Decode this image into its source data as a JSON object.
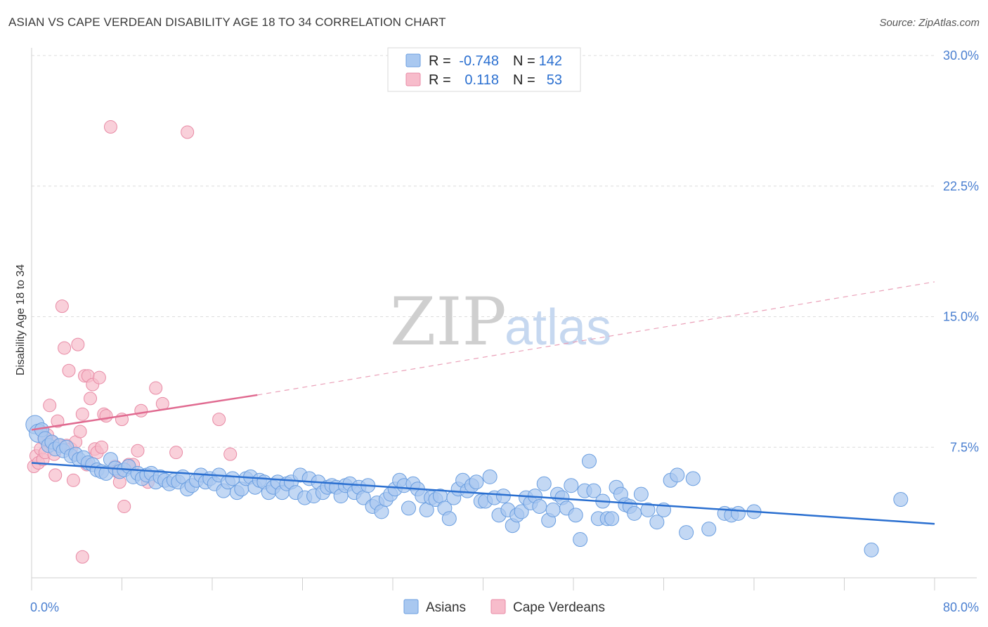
{
  "header": {
    "title": "ASIAN VS CAPE VERDEAN DISABILITY AGE 18 TO 34 CORRELATION CHART",
    "source": "Source: ZipAtlas.com"
  },
  "watermark": {
    "part1": "ZIP",
    "part2": "atlas"
  },
  "legend": {
    "rows": [
      {
        "r_label": "R =",
        "r_value": "-0.748",
        "n_label": "N =",
        "n_value": "142",
        "color": "#a9c8f0",
        "stroke": "#6a9ee0"
      },
      {
        "r_label": "R =",
        "r_value": "0.118",
        "n_label": "N =",
        "n_value": "53",
        "color": "#f7bccb",
        "stroke": "#e88aa5"
      }
    ]
  },
  "bottom_legend": {
    "items": [
      {
        "label": "Asians",
        "color": "#a9c8f0",
        "stroke": "#6a9ee0"
      },
      {
        "label": "Cape Verdeans",
        "color": "#f7bccb",
        "stroke": "#e88aa5"
      }
    ]
  },
  "chart_data": {
    "type": "scatter",
    "title": "ASIAN VS CAPE VERDEAN DISABILITY AGE 18 TO 34 CORRELATION CHART",
    "xlabel": "",
    "ylabel": "Disability Age 18 to 34",
    "xlim": [
      0,
      80
    ],
    "ylim": [
      0,
      30
    ],
    "x_tick_labels": [
      "0.0%",
      "80.0%"
    ],
    "y_ticks": [
      7.5,
      15.0,
      22.5,
      30.0
    ],
    "y_tick_labels": [
      "7.5%",
      "15.0%",
      "22.5%",
      "30.0%"
    ],
    "grid": "horizontal dashed",
    "legend_position": "top-center",
    "series": [
      {
        "name": "Asians",
        "color": "#a9c8f0",
        "stroke": "#6a9ee0",
        "trend": {
          "x": [
            0,
            80
          ],
          "y": [
            6.6,
            3.1
          ],
          "color": "#2a6fd0"
        },
        "points": [
          [
            0.3,
            8.8
          ],
          [
            0.6,
            8.3
          ],
          [
            0.9,
            8.5
          ],
          [
            1.2,
            8.0
          ],
          [
            1.5,
            7.6
          ],
          [
            1.8,
            7.8
          ],
          [
            2.1,
            7.4
          ],
          [
            2.5,
            7.6
          ],
          [
            2.8,
            7.3
          ],
          [
            3.1,
            7.5
          ],
          [
            3.5,
            7.0
          ],
          [
            3.9,
            7.1
          ],
          [
            4.2,
            6.8
          ],
          [
            4.6,
            6.9
          ],
          [
            5.0,
            6.6
          ],
          [
            5.4,
            6.5
          ],
          [
            5.8,
            6.2
          ],
          [
            6.2,
            6.1
          ],
          [
            6.6,
            6.0
          ],
          [
            7.0,
            6.8
          ],
          [
            7.4,
            6.3
          ],
          [
            7.8,
            6.1
          ],
          [
            8.2,
            6.2
          ],
          [
            8.6,
            6.4
          ],
          [
            9.0,
            5.8
          ],
          [
            9.4,
            6.0
          ],
          [
            9.8,
            5.7
          ],
          [
            10.2,
            5.9
          ],
          [
            10.6,
            6.0
          ],
          [
            11.0,
            5.5
          ],
          [
            11.4,
            5.8
          ],
          [
            11.8,
            5.6
          ],
          [
            12.2,
            5.4
          ],
          [
            12.6,
            5.6
          ],
          [
            13.0,
            5.5
          ],
          [
            13.4,
            5.8
          ],
          [
            13.8,
            5.1
          ],
          [
            14.2,
            5.3
          ],
          [
            14.6,
            5.6
          ],
          [
            15.0,
            5.9
          ],
          [
            15.4,
            5.5
          ],
          [
            15.8,
            5.7
          ],
          [
            16.2,
            5.4
          ],
          [
            16.6,
            5.9
          ],
          [
            17.0,
            5.0
          ],
          [
            17.4,
            5.5
          ],
          [
            17.8,
            5.7
          ],
          [
            18.2,
            4.9
          ],
          [
            18.6,
            5.1
          ],
          [
            19.0,
            5.7
          ],
          [
            19.4,
            5.8
          ],
          [
            19.8,
            5.2
          ],
          [
            20.2,
            5.6
          ],
          [
            20.6,
            5.5
          ],
          [
            21.0,
            4.9
          ],
          [
            21.4,
            5.2
          ],
          [
            21.8,
            5.5
          ],
          [
            22.2,
            4.9
          ],
          [
            22.6,
            5.4
          ],
          [
            23.0,
            5.5
          ],
          [
            23.4,
            4.9
          ],
          [
            23.8,
            5.9
          ],
          [
            24.2,
            4.6
          ],
          [
            24.6,
            5.7
          ],
          [
            25.0,
            4.7
          ],
          [
            25.4,
            5.5
          ],
          [
            25.8,
            4.9
          ],
          [
            26.2,
            5.2
          ],
          [
            26.6,
            5.3
          ],
          [
            27.0,
            5.2
          ],
          [
            27.4,
            4.7
          ],
          [
            27.8,
            5.3
          ],
          [
            28.2,
            5.4
          ],
          [
            28.6,
            4.9
          ],
          [
            29.0,
            5.2
          ],
          [
            29.4,
            4.6
          ],
          [
            29.8,
            5.3
          ],
          [
            30.2,
            4.1
          ],
          [
            30.6,
            4.3
          ],
          [
            31.0,
            3.8
          ],
          [
            31.4,
            4.5
          ],
          [
            31.8,
            4.8
          ],
          [
            32.2,
            5.1
          ],
          [
            32.6,
            5.6
          ],
          [
            33.0,
            5.3
          ],
          [
            33.4,
            4.0
          ],
          [
            33.8,
            5.4
          ],
          [
            34.2,
            5.1
          ],
          [
            34.6,
            4.7
          ],
          [
            35.0,
            3.9
          ],
          [
            35.4,
            4.6
          ],
          [
            35.8,
            4.5
          ],
          [
            36.2,
            4.7
          ],
          [
            36.6,
            4.0
          ],
          [
            37.0,
            3.4
          ],
          [
            37.4,
            4.6
          ],
          [
            37.8,
            5.1
          ],
          [
            38.2,
            5.6
          ],
          [
            38.6,
            5.0
          ],
          [
            39.0,
            5.3
          ],
          [
            39.4,
            5.5
          ],
          [
            39.8,
            4.4
          ],
          [
            40.2,
            4.4
          ],
          [
            40.6,
            5.8
          ],
          [
            41.0,
            4.6
          ],
          [
            41.4,
            3.6
          ],
          [
            41.8,
            4.7
          ],
          [
            42.2,
            3.9
          ],
          [
            42.6,
            3.0
          ],
          [
            43.0,
            3.6
          ],
          [
            43.4,
            3.8
          ],
          [
            43.8,
            4.6
          ],
          [
            44.2,
            4.3
          ],
          [
            44.6,
            4.7
          ],
          [
            45.0,
            4.1
          ],
          [
            45.4,
            5.4
          ],
          [
            45.8,
            3.3
          ],
          [
            46.2,
            3.9
          ],
          [
            46.6,
            4.8
          ],
          [
            47.0,
            4.6
          ],
          [
            47.4,
            4.0
          ],
          [
            47.8,
            5.3
          ],
          [
            48.2,
            3.6
          ],
          [
            48.6,
            2.2
          ],
          [
            49.0,
            5.0
          ],
          [
            49.4,
            6.7
          ],
          [
            49.8,
            5.0
          ],
          [
            50.2,
            3.4
          ],
          [
            50.6,
            4.4
          ],
          [
            51.0,
            3.4
          ],
          [
            51.4,
            3.4
          ],
          [
            51.8,
            5.2
          ],
          [
            52.2,
            4.8
          ],
          [
            52.6,
            4.2
          ],
          [
            53.0,
            4.1
          ],
          [
            53.4,
            3.7
          ],
          [
            54.0,
            4.8
          ],
          [
            54.6,
            3.9
          ],
          [
            55.4,
            3.2
          ],
          [
            56.0,
            3.9
          ],
          [
            56.6,
            5.6
          ],
          [
            57.2,
            5.9
          ],
          [
            58.0,
            2.6
          ],
          [
            58.6,
            5.7
          ],
          [
            60.0,
            2.8
          ],
          [
            61.4,
            3.7
          ],
          [
            62.0,
            3.6
          ],
          [
            62.6,
            3.7
          ],
          [
            64.0,
            3.8
          ],
          [
            74.4,
            1.6
          ],
          [
            77.0,
            4.5
          ]
        ]
      },
      {
        "name": "Cape Verdeans",
        "color": "#f7bccb",
        "stroke": "#e88aa5",
        "trend": {
          "x": [
            0,
            20
          ],
          "y": [
            8.5,
            10.5
          ],
          "x_ext": [
            20,
            80
          ],
          "y_ext": [
            10.5,
            17.0
          ],
          "color": "#e06a90"
        },
        "points": [
          [
            0.2,
            6.4
          ],
          [
            0.4,
            7.0
          ],
          [
            0.6,
            6.6
          ],
          [
            0.8,
            7.4
          ],
          [
            1.0,
            6.8
          ],
          [
            1.2,
            7.2
          ],
          [
            1.4,
            8.2
          ],
          [
            1.6,
            9.9
          ],
          [
            1.8,
            7.8
          ],
          [
            2.0,
            7.1
          ],
          [
            2.1,
            5.9
          ],
          [
            2.3,
            9.0
          ],
          [
            2.5,
            7.6
          ],
          [
            2.7,
            15.6
          ],
          [
            2.9,
            13.2
          ],
          [
            3.1,
            7.6
          ],
          [
            3.3,
            11.9
          ],
          [
            3.5,
            7.4
          ],
          [
            3.7,
            5.6
          ],
          [
            3.9,
            7.8
          ],
          [
            4.1,
            13.4
          ],
          [
            4.3,
            8.4
          ],
          [
            4.5,
            9.4
          ],
          [
            4.7,
            11.6
          ],
          [
            4.9,
            6.5
          ],
          [
            5.0,
            11.6
          ],
          [
            5.2,
            10.3
          ],
          [
            5.4,
            11.1
          ],
          [
            5.6,
            7.4
          ],
          [
            5.8,
            7.2
          ],
          [
            6.0,
            11.5
          ],
          [
            6.2,
            7.5
          ],
          [
            6.4,
            9.4
          ],
          [
            6.6,
            9.3
          ],
          [
            7.0,
            25.9
          ],
          [
            7.4,
            6.4
          ],
          [
            7.6,
            6.1
          ],
          [
            7.8,
            5.5
          ],
          [
            8.0,
            9.1
          ],
          [
            8.2,
            4.1
          ],
          [
            8.6,
            6.5
          ],
          [
            9.0,
            6.5
          ],
          [
            9.4,
            7.3
          ],
          [
            9.7,
            9.6
          ],
          [
            10.3,
            5.5
          ],
          [
            11.0,
            10.9
          ],
          [
            11.6,
            10.0
          ],
          [
            12.8,
            7.2
          ],
          [
            13.8,
            25.6
          ],
          [
            16.6,
            9.1
          ],
          [
            17.6,
            7.1
          ],
          [
            4.5,
            1.2
          ],
          [
            1.1,
            8.0
          ]
        ]
      }
    ]
  }
}
